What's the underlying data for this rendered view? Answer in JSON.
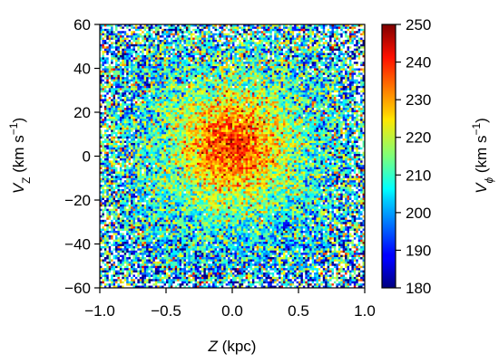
{
  "chart_data": {
    "type": "heatmap",
    "description": "2D binned map of mean azimuthal velocity V_phi as a function of vertical height Z and vertical velocity V_Z",
    "x": {
      "label_main": "Z",
      "label_unit": " (kpc)",
      "range": [
        -1.0,
        1.0
      ],
      "ticks": [
        -1.0,
        -0.5,
        0.0,
        0.5,
        1.0
      ],
      "tick_labels": [
        "−1.0",
        "−0.5",
        "0.0",
        "0.5",
        "1.0"
      ]
    },
    "y": {
      "label_main": "V",
      "label_sub": "Z",
      "label_unit": " (km s",
      "label_exp": "−1",
      "label_close": ")",
      "range": [
        -60,
        60
      ],
      "ticks": [
        -60,
        -40,
        -20,
        0,
        20,
        40,
        60
      ],
      "tick_labels": [
        "−60",
        "−40",
        "−20",
        "0",
        "20",
        "40",
        "60"
      ]
    },
    "colorbar": {
      "label_main": "V",
      "label_sub": "ϕ",
      "label_unit": " (km s",
      "label_exp": "−1",
      "label_close": ")",
      "range": [
        180,
        250
      ],
      "ticks": [
        180,
        190,
        200,
        210,
        220,
        230,
        240,
        250
      ],
      "tick_labels": [
        "180",
        "190",
        "200",
        "210",
        "220",
        "230",
        "240",
        "250"
      ],
      "colormap": "jet"
    },
    "grid": {
      "nx": 120,
      "ny": 120,
      "core_value_vphi": 238,
      "core_center_z": 0.0,
      "core_center_vz": 5,
      "core_radius_z": 0.4,
      "core_radius_vz": 25,
      "outer_value_vphi": 206,
      "noise_level_vphi": 7,
      "empty_fraction_at_edges": 0.12
    }
  }
}
